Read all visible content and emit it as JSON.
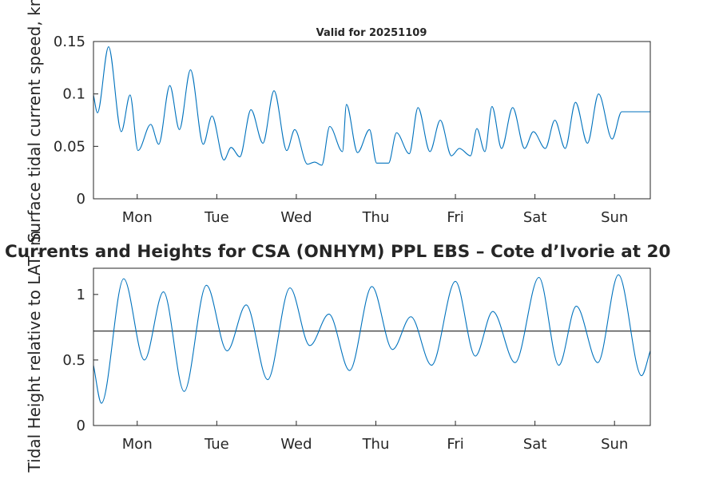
{
  "figure": {
    "subtitle": "Valid for 20251109",
    "main_title": "Currents and Heights for CSA (ONHYM) PPL EBS  – Cote d’Ivorie at 20"
  },
  "chart_data": [
    {
      "type": "line",
      "title": "Valid for 20251109",
      "xlabel": "",
      "ylabel": "Surface tidal current speed, kn",
      "xlim": [
        0,
        7.0
      ],
      "ylim": [
        0,
        0.15
      ],
      "yticks": [
        0,
        0.05,
        0.1,
        0.15
      ],
      "ytick_labels": [
        "0",
        "0.05",
        "0.1",
        "0.15"
      ],
      "xticks": [
        0.55,
        1.55,
        2.55,
        3.55,
        4.55,
        5.55,
        6.55
      ],
      "xtick_labels": [
        "Mon",
        "Tue",
        "Wed",
        "Thu",
        "Fri",
        "Sat",
        "Sun"
      ],
      "grid": false,
      "series": [
        {
          "name": "Surface tidal current speed",
          "color": "#0072BD",
          "x": [
            0,
            0.05,
            0.19,
            0.35,
            0.46,
            0.56,
            0.72,
            0.82,
            0.96,
            1.08,
            1.22,
            1.38,
            1.49,
            1.64,
            1.73,
            1.84,
            1.98,
            2.13,
            2.27,
            2.43,
            2.53,
            2.69,
            2.78,
            2.87,
            2.97,
            3.13,
            3.18,
            3.32,
            3.47,
            3.56,
            3.71,
            3.81,
            3.97,
            4.08,
            4.23,
            4.36,
            4.5,
            4.6,
            4.74,
            4.82,
            4.92,
            5.01,
            5.13,
            5.27,
            5.42,
            5.53,
            5.68,
            5.8,
            5.93,
            6.06,
            6.21,
            6.35,
            6.52,
            6.64,
            6.79,
            6.86,
            7.0
          ],
          "values": [
            0.099,
            0.082,
            0.145,
            0.064,
            0.099,
            0.046,
            0.071,
            0.052,
            0.108,
            0.066,
            0.123,
            0.052,
            0.079,
            0.037,
            0.049,
            0.04,
            0.085,
            0.053,
            0.103,
            0.046,
            0.066,
            0.033,
            0.035,
            0.032,
            0.069,
            0.045,
            0.09,
            0.044,
            0.066,
            0.034,
            0.034,
            0.063,
            0.043,
            0.087,
            0.045,
            0.075,
            0.041,
            0.048,
            0.041,
            0.067,
            0.045,
            0.088,
            0.048,
            0.087,
            0.048,
            0.064,
            0.048,
            0.075,
            0.048,
            0.092,
            0.053,
            0.1,
            0.057,
            0.083,
            0.083,
            0.083,
            0.083
          ]
        }
      ]
    },
    {
      "type": "line",
      "title": "Currents and Heights for CSA (ONHYM) PPL EBS  – Cote d’Ivorie at 20",
      "xlabel": "",
      "ylabel": "Tidal Height relative to LAT, m",
      "xlim": [
        0,
        7.0
      ],
      "ylim": [
        0,
        1.2
      ],
      "yticks": [
        0,
        0.5,
        1
      ],
      "ytick_labels": [
        "0",
        "0.5",
        "1"
      ],
      "xticks": [
        0.55,
        1.55,
        2.55,
        3.55,
        4.55,
        5.55,
        6.55
      ],
      "xtick_labels": [
        "Mon",
        "Tue",
        "Wed",
        "Thu",
        "Fri",
        "Sat",
        "Sun"
      ],
      "grid": false,
      "reference_level": 0.72,
      "series": [
        {
          "name": "Tidal height",
          "color": "#0072BD",
          "x": [
            0,
            0.1,
            0.38,
            0.64,
            0.88,
            1.14,
            1.42,
            1.68,
            1.92,
            2.19,
            2.47,
            2.72,
            2.96,
            3.22,
            3.5,
            3.76,
            3.99,
            4.25,
            4.55,
            4.8,
            5.02,
            5.3,
            5.6,
            5.85,
            6.07,
            6.34,
            6.6,
            6.89,
            7.0
          ],
          "values": [
            0.46,
            0.17,
            1.12,
            0.5,
            1.02,
            0.26,
            1.07,
            0.57,
            0.92,
            0.35,
            1.05,
            0.61,
            0.85,
            0.42,
            1.06,
            0.58,
            0.83,
            0.46,
            1.1,
            0.53,
            0.87,
            0.48,
            1.13,
            0.46,
            0.91,
            0.48,
            1.15,
            0.38,
            0.57
          ]
        }
      ]
    }
  ]
}
